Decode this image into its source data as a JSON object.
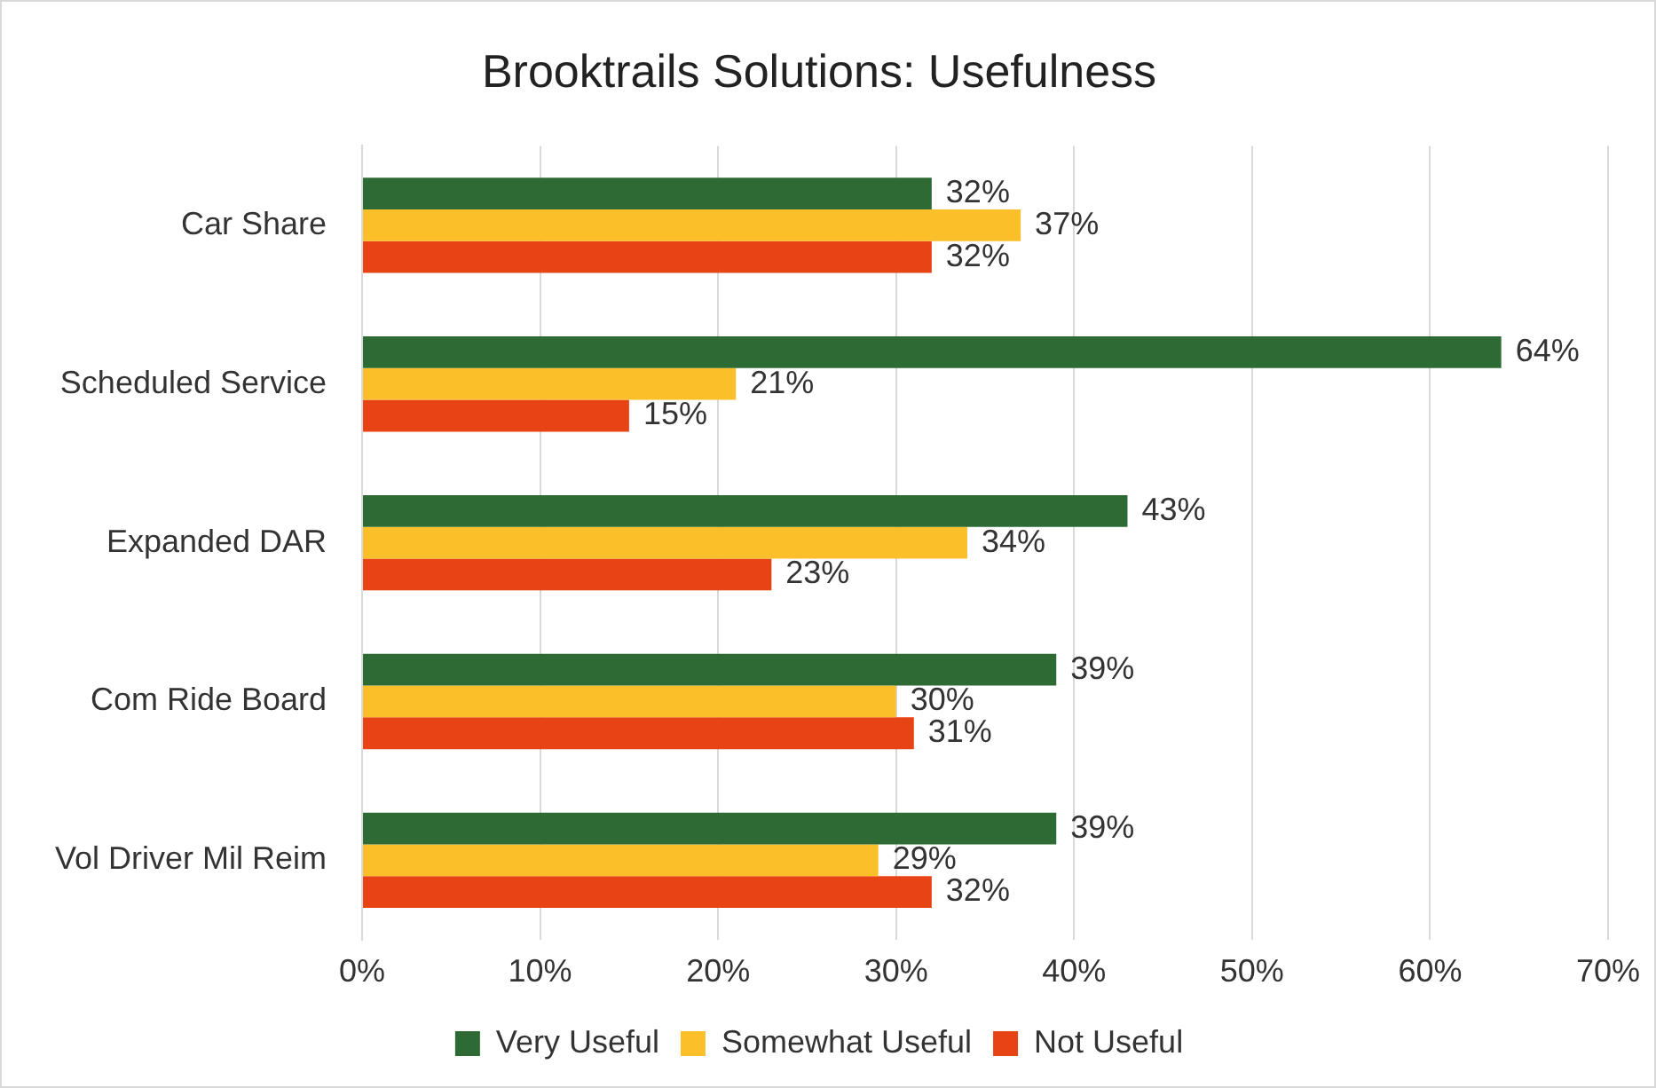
{
  "chart_data": {
    "type": "bar",
    "orientation": "horizontal",
    "title": "Brooktrails Solutions: Usefulness",
    "categories": [
      "Car Share",
      "Scheduled Service",
      "Expanded DAR",
      "Com Ride Board",
      "Vol Driver Mil Reim"
    ],
    "series": [
      {
        "name": "Very Useful",
        "color": "#2e6b34",
        "values": [
          32,
          64,
          43,
          39,
          39
        ],
        "value_labels": [
          "32%",
          "64%",
          "43%",
          "39%",
          "39%"
        ]
      },
      {
        "name": "Somewhat Useful",
        "color": "#fbbf2a",
        "values": [
          37,
          21,
          34,
          30,
          29
        ],
        "value_labels": [
          "37%",
          "21%",
          "34%",
          "30%",
          "29%"
        ]
      },
      {
        "name": "Not Useful",
        "color": "#e84315",
        "values": [
          32,
          15,
          23,
          31,
          32
        ],
        "value_labels": [
          "32%",
          "15%",
          "23%",
          "31%",
          "32%"
        ]
      }
    ],
    "xlim": [
      0,
      70
    ],
    "xticks": [
      {
        "value": 0,
        "label": "0%"
      },
      {
        "value": 10,
        "label": "10%"
      },
      {
        "value": 20,
        "label": "20%"
      },
      {
        "value": 30,
        "label": "30%"
      },
      {
        "value": 40,
        "label": "40%"
      },
      {
        "value": 50,
        "label": "50%"
      },
      {
        "value": 60,
        "label": "60%"
      },
      {
        "value": 70,
        "label": "70%"
      }
    ],
    "grid": "x",
    "legend": "bottom"
  }
}
